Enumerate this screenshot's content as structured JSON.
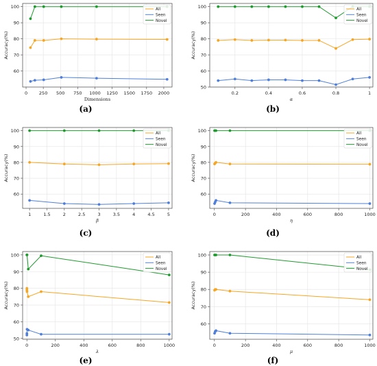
{
  "colors": {
    "all": "#f5a623",
    "seen": "#4f7fd9",
    "novel": "#1f9a2e",
    "grid": "#e3e3e3",
    "axis": "#444444"
  },
  "legend_labels": [
    "All",
    "Seen",
    "Novel"
  ],
  "ylabel": "Accuracy(%)",
  "chart_data": [
    {
      "type": "line",
      "caption": "(a)",
      "xlabel": "Dimensions",
      "xlim": [
        -50,
        2120
      ],
      "ylim": [
        50,
        102
      ],
      "xticks": [
        0,
        250,
        500,
        750,
        1000,
        1250,
        1500,
        1750,
        2000
      ],
      "yticks": [
        60,
        70,
        80,
        90,
        100
      ],
      "legend": "top-right",
      "series": [
        {
          "name": "All",
          "x": [
            64,
            128,
            256,
            512,
            1024,
            2048
          ],
          "y": [
            74.5,
            79,
            79,
            80,
            79.8,
            79.6
          ]
        },
        {
          "name": "Seen",
          "x": [
            64,
            128,
            256,
            512,
            1024,
            2048
          ],
          "y": [
            53.5,
            54.2,
            54.5,
            56,
            55.5,
            54.8
          ]
        },
        {
          "name": "Novel",
          "x": [
            64,
            128,
            256,
            512,
            1024,
            2048
          ],
          "y": [
            92.5,
            100,
            100,
            100,
            100,
            100
          ]
        }
      ]
    },
    {
      "type": "line",
      "caption": "(b)",
      "xlabel": "α",
      "xlim": [
        0.05,
        1.02
      ],
      "ylim": [
        50,
        102
      ],
      "xticks": [
        0.2,
        0.4,
        0.6,
        0.8,
        1.0
      ],
      "yticks": [
        50,
        60,
        70,
        80,
        90,
        100
      ],
      "legend": "top-right",
      "series": [
        {
          "name": "All",
          "x": [
            0.1,
            0.2,
            0.3,
            0.4,
            0.5,
            0.6,
            0.7,
            0.8,
            0.9,
            1.0
          ],
          "y": [
            79,
            79.5,
            79,
            79.2,
            79.2,
            79,
            79,
            74,
            79.5,
            79.8
          ]
        },
        {
          "name": "Seen",
          "x": [
            0.1,
            0.2,
            0.3,
            0.4,
            0.5,
            0.6,
            0.7,
            0.8,
            0.9,
            1.0
          ],
          "y": [
            54,
            55,
            54,
            54.5,
            54.5,
            54,
            54,
            51.5,
            55,
            56
          ]
        },
        {
          "name": "Novel",
          "x": [
            0.1,
            0.2,
            0.3,
            0.4,
            0.5,
            0.6,
            0.7,
            0.8,
            0.9,
            1.0
          ],
          "y": [
            100,
            100,
            100,
            100,
            100,
            100,
            100,
            93,
            100,
            100
          ]
        }
      ]
    },
    {
      "type": "line",
      "caption": "(c)",
      "xlabel": "β",
      "xlim": [
        0.8,
        5.1
      ],
      "ylim": [
        51,
        102
      ],
      "xticks": [
        1.0,
        1.5,
        2.0,
        2.5,
        3.0,
        3.5,
        4.0,
        4.5,
        5.0
      ],
      "yticks": [
        60,
        70,
        80,
        90,
        100
      ],
      "legend": "top-right",
      "series": [
        {
          "name": "All",
          "x": [
            1,
            2,
            3,
            4,
            5
          ],
          "y": [
            80,
            79,
            78.5,
            79,
            79.2
          ]
        },
        {
          "name": "Seen",
          "x": [
            1,
            2,
            3,
            4,
            5
          ],
          "y": [
            56,
            54,
            53.5,
            54,
            54.5
          ]
        },
        {
          "name": "Novel",
          "x": [
            1,
            2,
            3,
            4,
            5
          ],
          "y": [
            100,
            100,
            100,
            100,
            100
          ]
        }
      ]
    },
    {
      "type": "line",
      "caption": "(d)",
      "xlabel": "η",
      "xlim": [
        -30,
        1020
      ],
      "ylim": [
        51,
        102
      ],
      "xticks": [
        0,
        200,
        400,
        600,
        800,
        1000
      ],
      "yticks": [
        60,
        70,
        80,
        90,
        100
      ],
      "legend": "top-right",
      "series": [
        {
          "name": "All",
          "x": [
            1,
            5,
            10,
            100,
            1000
          ],
          "y": [
            79,
            79.5,
            80,
            79,
            78.8
          ]
        },
        {
          "name": "Seen",
          "x": [
            1,
            5,
            10,
            100,
            1000
          ],
          "y": [
            54,
            55,
            56,
            54.5,
            54
          ]
        },
        {
          "name": "Novel",
          "x": [
            1,
            5,
            10,
            100,
            1000
          ],
          "y": [
            100,
            100,
            100,
            100,
            100
          ]
        }
      ]
    },
    {
      "type": "line",
      "caption": "(e)",
      "xlabel": "λ",
      "xlim": [
        -30,
        1020
      ],
      "ylim": [
        49.5,
        102
      ],
      "xticks": [
        0,
        200,
        400,
        600,
        800,
        1000
      ],
      "yticks": [
        50,
        60,
        70,
        80,
        90,
        100
      ],
      "legend": "top-right",
      "series": [
        {
          "name": "All",
          "x": [
            0.01,
            0.1,
            1,
            10,
            100,
            1000
          ],
          "y": [
            79,
            80,
            78,
            75,
            78,
            71.5
          ]
        },
        {
          "name": "Seen",
          "x": [
            0.01,
            0.1,
            1,
            10,
            100,
            1000
          ],
          "y": [
            52,
            53,
            55.5,
            55,
            52.5,
            52.5
          ]
        },
        {
          "name": "Novel",
          "x": [
            0.01,
            0.1,
            1,
            10,
            100,
            1000
          ],
          "y": [
            100,
            100,
            100,
            91.5,
            99.5,
            88
          ]
        }
      ]
    },
    {
      "type": "line",
      "caption": "(f)",
      "xlabel": "μ",
      "xlim": [
        -30,
        1020
      ],
      "ylim": [
        51,
        102
      ],
      "xticks": [
        0,
        200,
        400,
        600,
        800,
        1000
      ],
      "yticks": [
        60,
        70,
        80,
        90,
        100
      ],
      "legend": "top-right",
      "series": [
        {
          "name": "All",
          "x": [
            1,
            5,
            10,
            100,
            1000
          ],
          "y": [
            79.5,
            80,
            80,
            79,
            74
          ]
        },
        {
          "name": "Seen",
          "x": [
            1,
            5,
            10,
            100,
            1000
          ],
          "y": [
            54.5,
            55.5,
            56,
            54.5,
            53.5
          ]
        },
        {
          "name": "Novel",
          "x": [
            1,
            5,
            10,
            100,
            1000
          ],
          "y": [
            100,
            100,
            100,
            100,
            91.5
          ]
        }
      ]
    }
  ]
}
